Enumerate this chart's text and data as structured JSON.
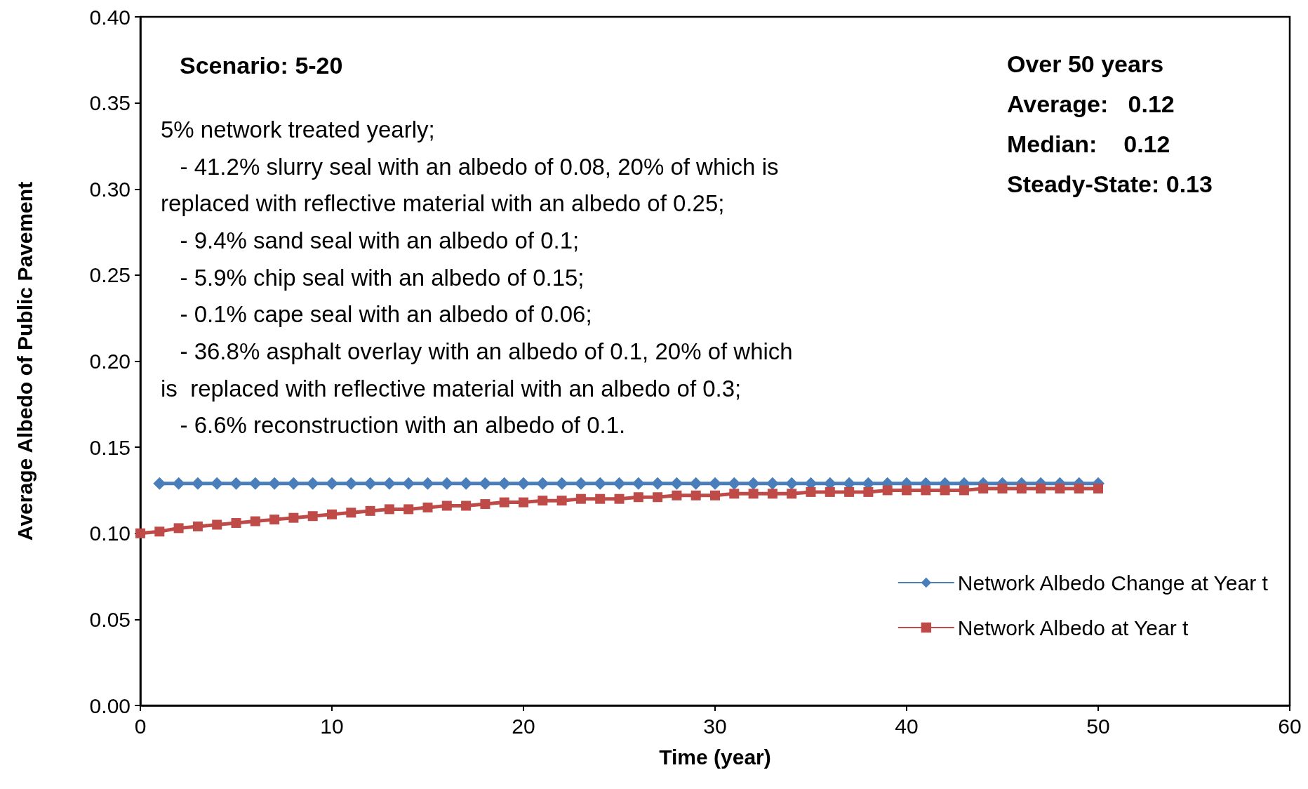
{
  "chart_data": {
    "type": "line",
    "xlabel": "Time (year)",
    "ylabel": "Average Albedo of Public Pavement",
    "xlim": [
      0,
      60
    ],
    "xticks": [
      0,
      10,
      20,
      30,
      40,
      50,
      60
    ],
    "ylim": [
      0,
      0.4
    ],
    "yticks": [
      {
        "value": 0,
        "label": "0.00"
      },
      {
        "value": 0.05,
        "label": "0.05"
      },
      {
        "value": 0.1,
        "label": "0.10"
      },
      {
        "value": 0.15,
        "label": "0.15"
      },
      {
        "value": 0.2,
        "label": "0.20"
      },
      {
        "value": 0.25,
        "label": "0.25"
      },
      {
        "value": 0.3,
        "label": "0.30"
      },
      {
        "value": 0.35,
        "label": "0.35"
      },
      {
        "value": 0.4,
        "label": "0.40"
      }
    ],
    "grid": false,
    "legend": "bottom right",
    "line_style": "solid",
    "annotations": [
      "Scenario: 5-20",
      "5% network treated yearly;\n   - 41.2% slurry seal with an albedo of 0.08, 20% of which is\nreplaced with reflective material with an albedo of 0.25;\n   - 9.4% sand seal with an albedo of 0.1;\n   - 5.9% chip seal with an albedo of 0.15;\n   - 0.1% cape seal with an albedo of 0.06;\n   - 36.8% asphalt overlay with an albedo of 0.1, 20% of which\nis  replaced with reflective material with an albedo of 0.3;\n   - 6.6% reconstruction with an albedo of 0.1.",
      "Over 50 years\nAverage:   0.12\nMedian:    0.12\nSteady-State: 0.13"
    ],
    "series": [
      {
        "name": "Network Albedo Change at Year t",
        "color": "#4a7ebb",
        "marker": "diamond",
        "x": [
          1,
          2,
          3,
          4,
          5,
          6,
          7,
          8,
          9,
          10,
          11,
          12,
          13,
          14,
          15,
          16,
          17,
          18,
          19,
          20,
          21,
          22,
          23,
          24,
          25,
          26,
          27,
          28,
          29,
          30,
          31,
          32,
          33,
          34,
          35,
          36,
          37,
          38,
          39,
          40,
          41,
          42,
          43,
          44,
          45,
          46,
          47,
          48,
          49,
          50
        ],
        "values": [
          0.129,
          0.129,
          0.129,
          0.129,
          0.129,
          0.129,
          0.129,
          0.129,
          0.129,
          0.129,
          0.129,
          0.129,
          0.129,
          0.129,
          0.129,
          0.129,
          0.129,
          0.129,
          0.129,
          0.129,
          0.129,
          0.129,
          0.129,
          0.129,
          0.129,
          0.129,
          0.129,
          0.129,
          0.129,
          0.129,
          0.129,
          0.129,
          0.129,
          0.129,
          0.129,
          0.129,
          0.129,
          0.129,
          0.129,
          0.129,
          0.129,
          0.129,
          0.129,
          0.129,
          0.129,
          0.129,
          0.129,
          0.129,
          0.129,
          0.129
        ]
      },
      {
        "name": "Network Albedo at Year t",
        "color": "#be4b48",
        "marker": "square",
        "x": [
          0,
          1,
          2,
          3,
          4,
          5,
          6,
          7,
          8,
          9,
          10,
          11,
          12,
          13,
          14,
          15,
          16,
          17,
          18,
          19,
          20,
          21,
          22,
          23,
          24,
          25,
          26,
          27,
          28,
          29,
          30,
          31,
          32,
          33,
          34,
          35,
          36,
          37,
          38,
          39,
          40,
          41,
          42,
          43,
          44,
          45,
          46,
          47,
          48,
          49,
          50
        ],
        "values": [
          0.1,
          0.101,
          0.103,
          0.104,
          0.105,
          0.106,
          0.107,
          0.108,
          0.109,
          0.11,
          0.111,
          0.112,
          0.113,
          0.114,
          0.114,
          0.115,
          0.116,
          0.116,
          0.117,
          0.118,
          0.118,
          0.119,
          0.119,
          0.12,
          0.12,
          0.12,
          0.121,
          0.121,
          0.122,
          0.122,
          0.122,
          0.123,
          0.123,
          0.123,
          0.123,
          0.124,
          0.124,
          0.124,
          0.124,
          0.125,
          0.125,
          0.125,
          0.125,
          0.125,
          0.126,
          0.126,
          0.126,
          0.126,
          0.126,
          0.126,
          0.126
        ]
      }
    ]
  }
}
